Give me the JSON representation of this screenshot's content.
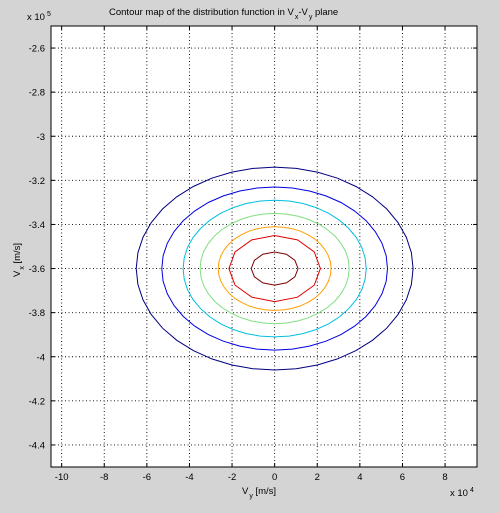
{
  "chart_data": {
    "type": "contour",
    "title_parts": [
      "Contour map of the distribution function in V",
      "x",
      "-V",
      "y",
      " plane"
    ],
    "xlabel_main": "V",
    "xlabel_sub": "y",
    "xlabel_unit": " [m/s]",
    "ylabel_main": "V",
    "ylabel_sub": "x",
    "ylabel_unit": " [m/s]",
    "x_multiplier_base": "x 10",
    "x_multiplier_exp": "4",
    "y_multiplier_base": "x 10",
    "y_multiplier_exp": "5",
    "xlim": [
      -10.5,
      9.5
    ],
    "ylim": [
      -4.5,
      -2.5
    ],
    "x_ticks": [
      -10,
      -8,
      -6,
      -4,
      -2,
      0,
      2,
      4,
      6,
      8
    ],
    "x_tick_labels": [
      "-10",
      "-8",
      "-6",
      "-4",
      "-2",
      "0",
      "2",
      "4",
      "6",
      "8"
    ],
    "y_ticks": [
      -2.6,
      -2.8,
      -3.0,
      -3.2,
      -3.4,
      -3.6,
      -3.8,
      -4.0,
      -4.2,
      -4.4
    ],
    "y_tick_labels": [
      "-2.6",
      "-2.8",
      "-3",
      "-3.2",
      "-3.4",
      "-3.6",
      "-3.8",
      "-4",
      "-4.2",
      "-4.4"
    ],
    "grid": true,
    "center": [
      0,
      -3.6
    ],
    "contours": [
      {
        "level": 1,
        "rx": 6.5,
        "ry": 0.46,
        "color": "#00007f"
      },
      {
        "level": 2,
        "rx": 5.3,
        "ry": 0.37,
        "color": "#0000e0"
      },
      {
        "level": 3,
        "rx": 4.3,
        "ry": 0.31,
        "color": "#00bfdf"
      },
      {
        "level": 4,
        "rx": 3.5,
        "ry": 0.25,
        "color": "#7fdf7f"
      },
      {
        "level": 5,
        "rx": 2.65,
        "ry": 0.19,
        "color": "#ffa000"
      },
      {
        "level": 6,
        "rx": 2.15,
        "ry": 0.15,
        "color": "#e00000"
      },
      {
        "level": 7,
        "rx": 1.1,
        "ry": 0.075,
        "color": "#7f0000"
      }
    ]
  }
}
